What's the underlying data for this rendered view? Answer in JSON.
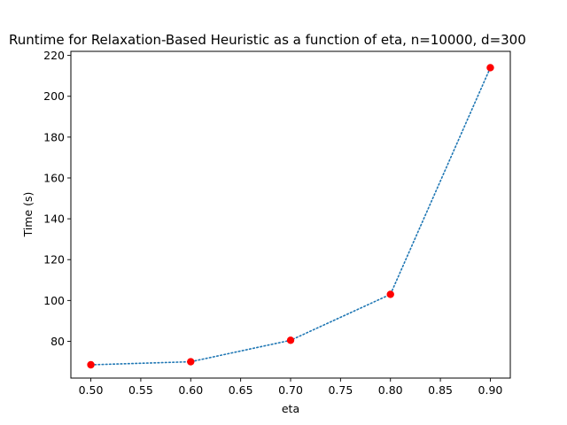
{
  "chart_data": {
    "type": "line",
    "title": "Runtime for Relaxation-Based Heuristic as a function of eta, n=10000, d=300",
    "xlabel": "eta",
    "ylabel": "Time (s)",
    "x": [
      0.5,
      0.6,
      0.7,
      0.8,
      0.9
    ],
    "series": [
      {
        "values": [
          68.5,
          70.0,
          80.5,
          103.0,
          214.0
        ]
      }
    ],
    "xlim": [
      0.48,
      0.92
    ],
    "ylim": [
      62,
      222
    ],
    "x_ticks": [
      0.5,
      0.55,
      0.6,
      0.65,
      0.7,
      0.75,
      0.8,
      0.85,
      0.9
    ],
    "x_tick_labels": [
      "0.50",
      "0.55",
      "0.60",
      "0.65",
      "0.70",
      "0.75",
      "0.80",
      "0.85",
      "0.90"
    ],
    "y_ticks": [
      80,
      100,
      120,
      140,
      160,
      180,
      200,
      220
    ],
    "y_tick_labels": [
      "80",
      "100",
      "120",
      "140",
      "160",
      "180",
      "200",
      "220"
    ],
    "line_style": "dotted",
    "line_color": "#1f77b4",
    "marker_color": "#ff0000",
    "grid": false,
    "legend": "none"
  }
}
